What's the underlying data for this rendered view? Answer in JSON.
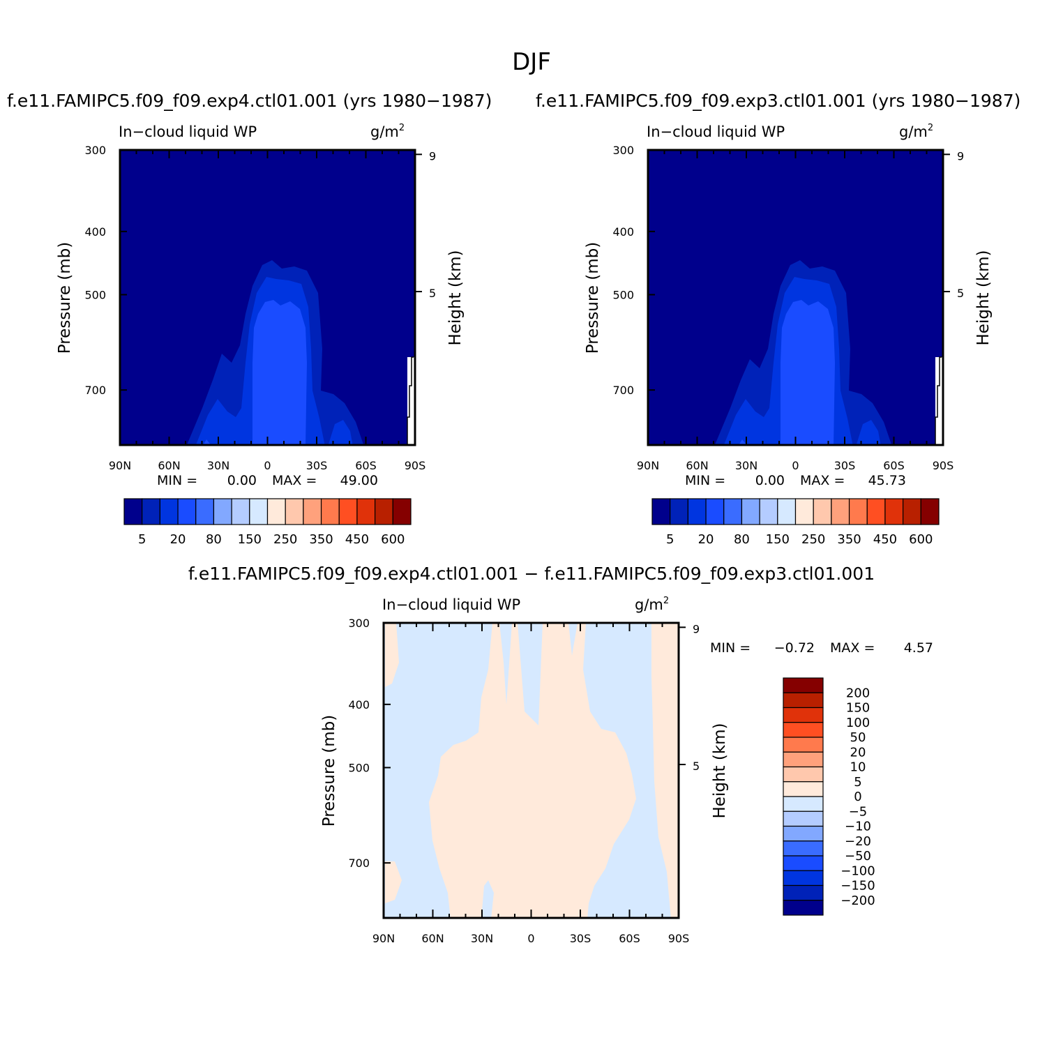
{
  "title": "DJF",
  "panels": [
    {
      "case_title": "f.e11.FAMIPC5.f09_f09.exp4.ctl01.001 (yrs 1980−1987)",
      "field_name": "In−cloud liquid WP",
      "units_base": "g/m",
      "units_exp": "2",
      "min_label": "MIN =",
      "min_value": "0.00",
      "max_label": "MAX =",
      "max_value": "49.00"
    },
    {
      "case_title": "f.e11.FAMIPC5.f09_f09.exp3.ctl01.001 (yrs 1980−1987)",
      "field_name": "In−cloud liquid WP",
      "units_base": "g/m",
      "units_exp": "2",
      "min_label": "MIN =",
      "min_value": "0.00",
      "max_label": "MAX =",
      "max_value": "45.73"
    },
    {
      "case_title": "f.e11.FAMIPC5.f09_f09.exp4.ctl01.001 − f.e11.FAMIPC5.f09_f09.exp3.ctl01.001",
      "field_name": "In−cloud liquid WP",
      "units_base": "g/m",
      "units_exp": "2",
      "min_label": "MIN =",
      "min_value": "−0.72",
      "max_label": "MAX =",
      "max_value": "4.57"
    }
  ],
  "axes": {
    "ylabel": "Pressure (mb)",
    "ylabel_right": "Height (km)",
    "pressure_ticks": [
      "300",
      "400",
      "500",
      "700"
    ],
    "height_ticks": [
      "9",
      "5"
    ],
    "lat_ticks": [
      "90N",
      "60N",
      "30N",
      "0",
      "30S",
      "60S",
      "90S"
    ]
  },
  "colorbar_case": {
    "labels": [
      "5",
      "20",
      "80",
      "150",
      "250",
      "350",
      "450",
      "600"
    ],
    "colors": [
      "#00008c",
      "#0022b8",
      "#0035e0",
      "#1a4cff",
      "#3a6cff",
      "#82a8ff",
      "#b4ccff",
      "#d6e9ff",
      "#ffeadb",
      "#ffc8ad",
      "#ffa17c",
      "#ff7a4d",
      "#ff4f22",
      "#e0320a",
      "#b82000",
      "#850000"
    ]
  },
  "colorbar_diff": {
    "labels": [
      "200",
      "150",
      "100",
      "50",
      "20",
      "10",
      "5",
      "0",
      "−5",
      "−10",
      "−20",
      "−50",
      "−100",
      "−150",
      "−200"
    ],
    "colors": [
      "#850000",
      "#b82000",
      "#e0320a",
      "#ff4f22",
      "#ff7a4d",
      "#ffa17c",
      "#ffc8ad",
      "#ffeadb",
      "#d6e9ff",
      "#b4ccff",
      "#82a8ff",
      "#3a6cff",
      "#1a4cff",
      "#0035e0",
      "#0022b8",
      "#00008c"
    ]
  },
  "chart_data": [
    {
      "type": "heatmap",
      "title": "f.e11.FAMIPC5.f09_f09.exp4.ctl01.001 (yrs 1980−1987)",
      "field": "In−cloud liquid WP",
      "units": "g/m2",
      "xlabel": "",
      "ylabel": "Pressure (mb)",
      "ylabel_right": "Height (km)",
      "x_ticks": [
        "90N",
        "60N",
        "30N",
        "0",
        "30S",
        "60S",
        "90S"
      ],
      "y_ticks": [
        300,
        400,
        500,
        700
      ],
      "ylim": [
        300,
        850
      ],
      "min": 0.0,
      "max": 49.0
    },
    {
      "type": "heatmap",
      "title": "f.e11.FAMIPC5.f09_f09.exp3.ctl01.001 (yrs 1980−1987)",
      "field": "In−cloud liquid WP",
      "units": "g/m2",
      "xlabel": "",
      "ylabel": "Pressure (mb)",
      "ylabel_right": "Height (km)",
      "x_ticks": [
        "90N",
        "60N",
        "30N",
        "0",
        "30S",
        "60S",
        "90S"
      ],
      "y_ticks": [
        300,
        400,
        500,
        700
      ],
      "ylim": [
        300,
        850
      ],
      "min": 0.0,
      "max": 45.73
    },
    {
      "type": "heatmap",
      "title": "f.e11.FAMIPC5.f09_f09.exp4.ctl01.001 − f.e11.FAMIPC5.f09_f09.exp3.ctl01.001",
      "field": "In−cloud liquid WP",
      "units": "g/m2",
      "xlabel": "",
      "ylabel": "Pressure (mb)",
      "ylabel_right": "Height (km)",
      "x_ticks": [
        "90N",
        "60N",
        "30N",
        "0",
        "30S",
        "60S",
        "90S"
      ],
      "y_ticks": [
        300,
        400,
        500,
        700
      ],
      "ylim": [
        300,
        850
      ],
      "min": -0.72,
      "max": 4.57
    }
  ]
}
